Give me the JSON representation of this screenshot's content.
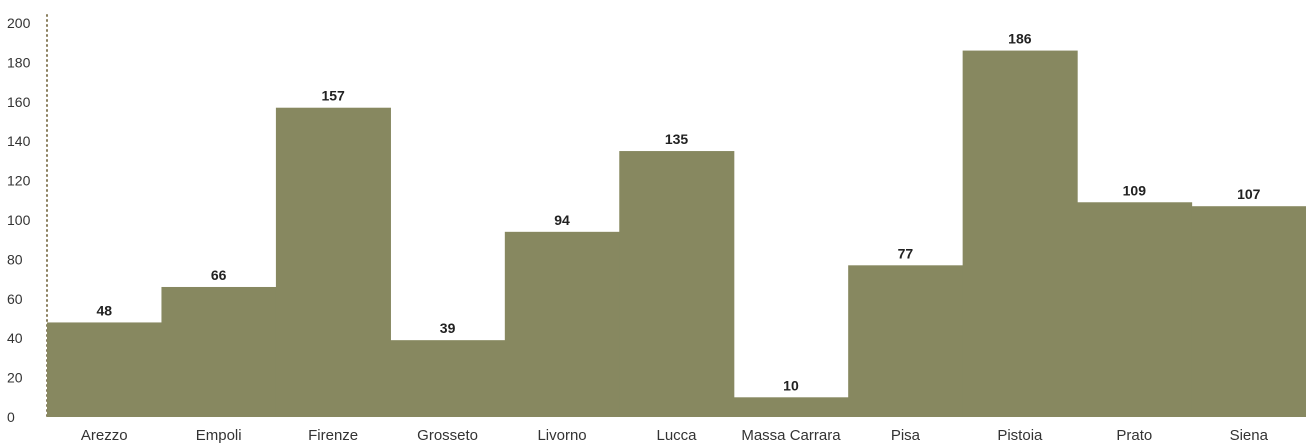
{
  "chart_data": {
    "type": "bar",
    "title": "",
    "xlabel": "",
    "ylabel": "",
    "categories": [
      "Arezzo",
      "Empoli",
      "Firenze",
      "Grosseto",
      "Livorno",
      "Lucca",
      "Massa Carrara",
      "Pisa",
      "Pistoia",
      "Prato",
      "Siena"
    ],
    "values": [
      48,
      66,
      157,
      39,
      94,
      135,
      10,
      77,
      186,
      109,
      107
    ],
    "ylim": [
      0,
      200
    ],
    "yticks": [
      0,
      20,
      40,
      60,
      80,
      100,
      120,
      140,
      160,
      180,
      200
    ],
    "grid": false,
    "data_labels": true,
    "bar_color": "#878860",
    "axis_color": "#8a7f5e"
  }
}
